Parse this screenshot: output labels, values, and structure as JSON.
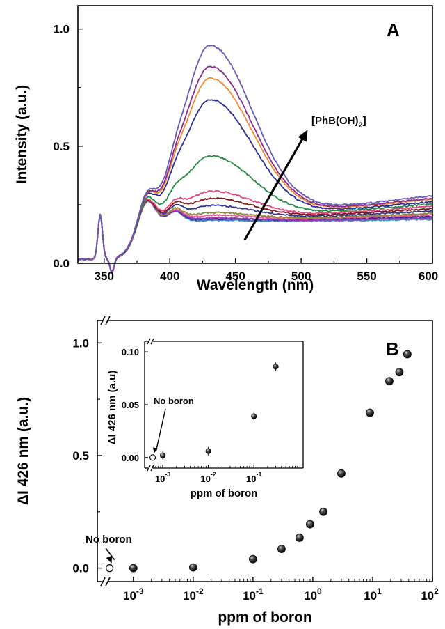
{
  "chart_data": [
    {
      "type": "line",
      "panel_label": "A",
      "xlabel": "Wavelength (nm)",
      "ylabel": "Intensity (a.u.)",
      "xlim": [
        330,
        600
      ],
      "ylim": [
        0,
        1.1
      ],
      "x_ticks": [
        {
          "v": 350,
          "label": "350"
        },
        {
          "v": 400,
          "label": "400"
        },
        {
          "v": 450,
          "label": "450"
        },
        {
          "v": 500,
          "label": "500"
        },
        {
          "v": 550,
          "label": "550"
        },
        {
          "v": 600,
          "label": "600"
        }
      ],
      "y_ticks": [
        {
          "v": 0.0,
          "label": "0.0"
        },
        {
          "v": 0.5,
          "label": "0.5"
        },
        {
          "v": 1.0,
          "label": "1.0"
        }
      ],
      "annotation": {
        "base": "[PhB(OH)",
        "sub": "2",
        "tail": "]",
        "arrow_from": [
          457,
          0.1
        ],
        "arrow_to": [
          505,
          0.57
        ]
      },
      "series": [
        {
          "color": "#2f9aa8",
          "peak": 0.27,
          "tail_level": 0.17
        },
        {
          "color": "#3b7fd0",
          "peak": 0.27,
          "tail_level": 0.175
        },
        {
          "color": "#d04070",
          "peak": 0.275,
          "tail_level": 0.185
        },
        {
          "color": "#2a2a9a",
          "peak": 0.275,
          "tail_level": 0.18
        },
        {
          "color": "#9a3ab0",
          "peak": 0.28,
          "tail_level": 0.175
        },
        {
          "color": "#e85a9a",
          "peak": 0.29,
          "tail_level": 0.19
        },
        {
          "color": "#8a8a30",
          "peak": 0.3,
          "tail_level": 0.195
        },
        {
          "color": "#303090",
          "peak": 0.33,
          "tail_level": 0.205
        },
        {
          "color": "#7a1818",
          "peak": 0.36,
          "tail_level": 0.215
        },
        {
          "color": "#e8407a",
          "peak": 0.39,
          "tail_level": 0.225
        },
        {
          "color": "#1f8a40",
          "peak": 0.54,
          "tail_level": 0.235
        },
        {
          "color": "#2a2a98",
          "peak": 0.78,
          "tail_level": 0.245
        },
        {
          "color": "#f08830",
          "peak": 0.87,
          "tail_level": 0.255
        },
        {
          "color": "#8a2a8a",
          "peak": 0.92,
          "tail_level": 0.26
        },
        {
          "color": "#6a58b8",
          "peak": 1.01,
          "tail_level": 0.27
        }
      ]
    },
    {
      "type": "scatter",
      "panel_label": "B",
      "xlabel": "ppm of boron",
      "ylabel": "ΔI 426 nm (a.u.)",
      "xscale": "log",
      "xlim": [
        0.00025,
        100
      ],
      "ylim": [
        -0.06,
        1.1
      ],
      "x_ticks": [
        {
          "v": 0.001,
          "base": "10",
          "exp": "-3"
        },
        {
          "v": 0.01,
          "base": "10",
          "exp": "-2"
        },
        {
          "v": 0.1,
          "base": "10",
          "exp": "-1"
        },
        {
          "v": 1,
          "base": "10",
          "exp": "0"
        },
        {
          "v": 10,
          "base": "10",
          "exp": "1"
        },
        {
          "v": 100,
          "base": "10",
          "exp": "2"
        }
      ],
      "y_ticks": [
        {
          "v": 0.0,
          "label": "0.0"
        },
        {
          "v": 0.5,
          "label": "0.5"
        },
        {
          "v": 1.0,
          "label": "1.0"
        }
      ],
      "no_boron_label": "No boron",
      "no_boron_point": {
        "x": 0.0004,
        "y": 0.0
      },
      "points": [
        {
          "x": 0.001,
          "y": 0.0
        },
        {
          "x": 0.01,
          "y": 0.003
        },
        {
          "x": 0.1,
          "y": 0.04
        },
        {
          "x": 0.3,
          "y": 0.085
        },
        {
          "x": 0.6,
          "y": 0.135
        },
        {
          "x": 0.9,
          "y": 0.195
        },
        {
          "x": 1.5,
          "y": 0.25
        },
        {
          "x": 3,
          "y": 0.42
        },
        {
          "x": 9,
          "y": 0.69
        },
        {
          "x": 19,
          "y": 0.83
        },
        {
          "x": 28,
          "y": 0.87
        },
        {
          "x": 38,
          "y": 0.95
        }
      ],
      "inset": {
        "xlabel": "ppm of boron",
        "ylabel": "ΔI 426 nm (a.u)",
        "xscale": "log",
        "xlim": [
          0.0004,
          1.2
        ],
        "ylim": [
          -0.01,
          0.11
        ],
        "x_ticks": [
          {
            "v": 0.001,
            "base": "10",
            "exp": "-3"
          },
          {
            "v": 0.01,
            "base": "10",
            "exp": "-2"
          },
          {
            "v": 0.1,
            "base": "10",
            "exp": "-1"
          }
        ],
        "y_ticks": [
          {
            "v": 0.0,
            "label": "0.00"
          },
          {
            "v": 0.05,
            "label": "0.05"
          },
          {
            "v": 0.1,
            "label": "0.10"
          }
        ],
        "no_boron_label": "No boron",
        "no_boron_point": {
          "x": 0.0006,
          "y": 0.0
        },
        "points": [
          {
            "x": 0.001,
            "y": 0.002
          },
          {
            "x": 0.01,
            "y": 0.006
          },
          {
            "x": 0.1,
            "y": 0.039
          },
          {
            "x": 0.3,
            "y": 0.086
          }
        ]
      }
    }
  ]
}
